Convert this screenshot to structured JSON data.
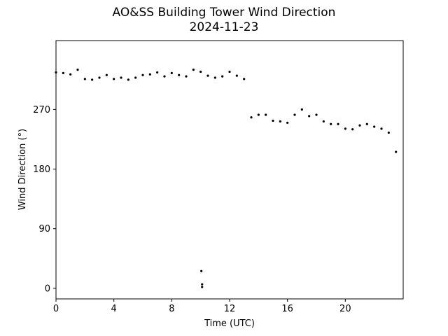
{
  "chart_data": {
    "type": "scatter",
    "title": "AO&SS Building Tower Wind Direction",
    "subtitle": "2024-11-23",
    "xlabel": "Time (UTC)",
    "ylabel": "Wind Direction (°)",
    "xlim": [
      0,
      24
    ],
    "ylim": [
      -16,
      374
    ],
    "xticks": [
      0,
      4,
      8,
      12,
      16,
      20
    ],
    "yticks": [
      0,
      90,
      180,
      270
    ],
    "grid": false,
    "marker_color": "#000000",
    "x": [
      0.0,
      0.5,
      1.0,
      1.5,
      2.0,
      2.5,
      3.0,
      3.5,
      4.0,
      4.5,
      5.0,
      5.5,
      6.0,
      6.5,
      7.0,
      7.5,
      8.0,
      8.5,
      9.0,
      9.5,
      10.0,
      10.5,
      11.0,
      11.5,
      12.0,
      12.5,
      13.0,
      13.5,
      14.0,
      14.5,
      15.0,
      15.5,
      16.0,
      16.5,
      17.0,
      17.5,
      18.0,
      18.5,
      19.0,
      19.5,
      20.0,
      20.5,
      21.0,
      21.5,
      22.0,
      22.5,
      23.0,
      23.5,
      10.05,
      10.1,
      10.1
    ],
    "y": [
      326,
      325,
      323,
      330,
      316,
      315,
      318,
      322,
      316,
      318,
      315,
      318,
      322,
      323,
      326,
      320,
      325,
      322,
      320,
      330,
      327,
      321,
      318,
      320,
      327,
      321,
      316,
      258,
      262,
      262,
      253,
      252,
      250,
      262,
      270,
      260,
      262,
      252,
      248,
      248,
      241,
      240,
      246,
      248,
      244,
      241,
      235,
      206,
      26,
      6,
      2
    ],
    "series": [
      {
        "name": "",
        "x": [
          0.0,
          0.5,
          1.0,
          1.5,
          2.0,
          2.5,
          3.0,
          3.5,
          4.0,
          4.5,
          5.0,
          5.5,
          6.0,
          6.5,
          7.0,
          7.5,
          8.0,
          8.5,
          9.0,
          9.5,
          10.0,
          10.5,
          11.0,
          11.5,
          12.0,
          12.5,
          13.0,
          13.5,
          14.0,
          14.5,
          15.0,
          15.5,
          16.0,
          16.5,
          17.0,
          17.5,
          18.0,
          18.5,
          19.0,
          19.5,
          20.0,
          20.5,
          21.0,
          21.5,
          22.0,
          22.5,
          23.0,
          23.5,
          10.05,
          10.1,
          10.1
        ],
        "y": [
          326,
          325,
          323,
          330,
          316,
          315,
          318,
          322,
          316,
          318,
          315,
          318,
          322,
          323,
          326,
          320,
          325,
          322,
          320,
          330,
          327,
          321,
          318,
          320,
          327,
          321,
          316,
          258,
          262,
          262,
          253,
          252,
          250,
          262,
          270,
          260,
          262,
          252,
          248,
          248,
          241,
          240,
          246,
          248,
          244,
          241,
          235,
          206,
          26,
          6,
          2
        ]
      }
    ]
  }
}
